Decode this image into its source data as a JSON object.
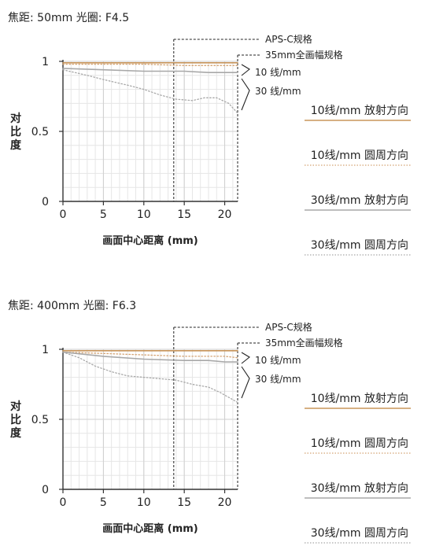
{
  "chart_data": [
    {
      "type": "line",
      "title": "焦距: 50mm  光圈: F4.5",
      "xlabel": "画面中心距离 (mm)",
      "ylabel": "对比度",
      "xlim": [
        0,
        21.6
      ],
      "ylim": [
        0,
        1
      ],
      "x_ticks": [
        "0",
        "5",
        "10",
        "15",
        "20"
      ],
      "y_ticks": [
        "0",
        "0.5",
        "1"
      ],
      "annotations": {
        "apsc": "APS-C规格",
        "full_frame": "35mm全画幅规格",
        "apsc_x": 13.7,
        "lp10": "10 线/mm",
        "lp30": "30 线/mm"
      },
      "legend": [
        "10线/mm 放射方向",
        "10线/mm 圆周方向",
        "30线/mm 放射方向",
        "30线/mm 圆周方向"
      ],
      "colors": [
        "#c8955a",
        "#d4a373",
        "#a8a8a8",
        "#a8a8a8"
      ],
      "series": [
        {
          "name": "10线/mm 放射方向",
          "x": [
            0,
            5,
            10,
            15,
            20,
            21.6
          ],
          "values": [
            0.99,
            0.99,
            0.99,
            0.99,
            0.99,
            0.99
          ]
        },
        {
          "name": "10线/mm 圆周方向",
          "x": [
            0,
            5,
            10,
            15,
            20,
            21.6
          ],
          "values": [
            0.98,
            0.98,
            0.98,
            0.97,
            0.97,
            0.97
          ]
        },
        {
          "name": "30线/mm 放射方向",
          "x": [
            0,
            5,
            10,
            15,
            18,
            20,
            21.6
          ],
          "values": [
            0.95,
            0.94,
            0.93,
            0.93,
            0.92,
            0.92,
            0.92
          ]
        },
        {
          "name": "30线/mm 圆周方向",
          "x": [
            0,
            3,
            5,
            8,
            10,
            12,
            14,
            16,
            17.5,
            19,
            20.5,
            21.6
          ],
          "values": [
            0.94,
            0.9,
            0.87,
            0.83,
            0.8,
            0.76,
            0.73,
            0.72,
            0.74,
            0.74,
            0.7,
            0.63
          ]
        }
      ]
    },
    {
      "type": "line",
      "title": "焦距: 400mm  光圈: F6.3",
      "xlabel": "画面中心距离 (mm)",
      "ylabel": "对比度",
      "xlim": [
        0,
        21.6
      ],
      "ylim": [
        0,
        1
      ],
      "x_ticks": [
        "0",
        "5",
        "10",
        "15",
        "20"
      ],
      "y_ticks": [
        "0",
        "0.5",
        "1"
      ],
      "annotations": {
        "apsc": "APS-C规格",
        "full_frame": "35mm全画幅规格",
        "apsc_x": 13.7,
        "lp10": "10 线/mm",
        "lp30": "30 线/mm"
      },
      "legend": [
        "10线/mm 放射方向",
        "10线/mm 圆周方向",
        "30线/mm 放射方向",
        "30线/mm 圆周方向"
      ],
      "colors": [
        "#c8955a",
        "#d4a373",
        "#a8a8a8",
        "#a8a8a8"
      ],
      "series": [
        {
          "name": "10线/mm 放射方向",
          "x": [
            0,
            5,
            10,
            15,
            20,
            21.6
          ],
          "values": [
            0.99,
            0.99,
            0.99,
            0.99,
            0.99,
            0.99
          ]
        },
        {
          "name": "10线/mm 圆周方向",
          "x": [
            0,
            5,
            10,
            15,
            20,
            21.6
          ],
          "values": [
            0.98,
            0.97,
            0.96,
            0.95,
            0.95,
            0.94
          ]
        },
        {
          "name": "30线/mm 放射方向",
          "x": [
            0,
            5,
            10,
            15,
            18,
            20,
            21.6
          ],
          "values": [
            0.98,
            0.95,
            0.93,
            0.92,
            0.92,
            0.91,
            0.91
          ]
        },
        {
          "name": "30线/mm 圆周方向",
          "x": [
            0,
            2,
            4,
            6,
            8,
            10,
            12,
            14,
            16,
            18,
            19.5,
            21.6
          ],
          "values": [
            0.98,
            0.94,
            0.88,
            0.84,
            0.81,
            0.8,
            0.79,
            0.78,
            0.75,
            0.73,
            0.69,
            0.62
          ]
        }
      ]
    }
  ]
}
